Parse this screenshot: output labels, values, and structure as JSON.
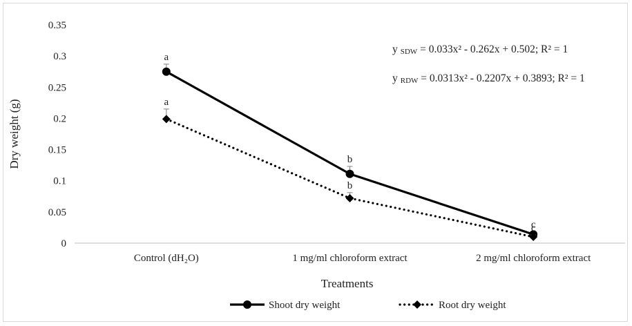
{
  "chart_data": {
    "type": "line",
    "categories": [
      "Control (dH₂O)",
      "1 mg/ml chloroform extract",
      "2 mg/ml chloroform extract"
    ],
    "series": [
      {
        "name": "Shoot dry weight",
        "values": [
          0.275,
          0.111,
          0.014
        ],
        "error": [
          0.012,
          0.012,
          0.004
        ],
        "letters": [
          "a",
          "b",
          "c"
        ],
        "line_style": "solid",
        "marker": "circle",
        "color": "#000000"
      },
      {
        "name": "Root dry weight",
        "values": [
          0.199,
          0.072,
          0.01
        ],
        "error": [
          0.016,
          0.009,
          0.003
        ],
        "letters": [
          "a",
          "b",
          "c"
        ],
        "line_style": "dotted",
        "marker": "diamond",
        "color": "#000000"
      }
    ],
    "xlabel": "Treatments",
    "ylabel": "Dry weight (g)",
    "ylim": [
      0,
      0.35
    ],
    "yticks": [
      "0",
      "0.05",
      "0.1",
      "0.15",
      "0.2",
      "0.25",
      "0.3",
      "0.35"
    ],
    "grid": false,
    "legend_position": "bottom",
    "annotations": [
      {
        "y": "y",
        "sub": "SDW",
        "rest": " = 0.033x² - 0.262x + 0.502; R² = 1"
      },
      {
        "y": "y",
        "sub": "RDW",
        "rest": " = 0.0313x² - 0.2207x + 0.3893; R² = 1"
      }
    ]
  }
}
